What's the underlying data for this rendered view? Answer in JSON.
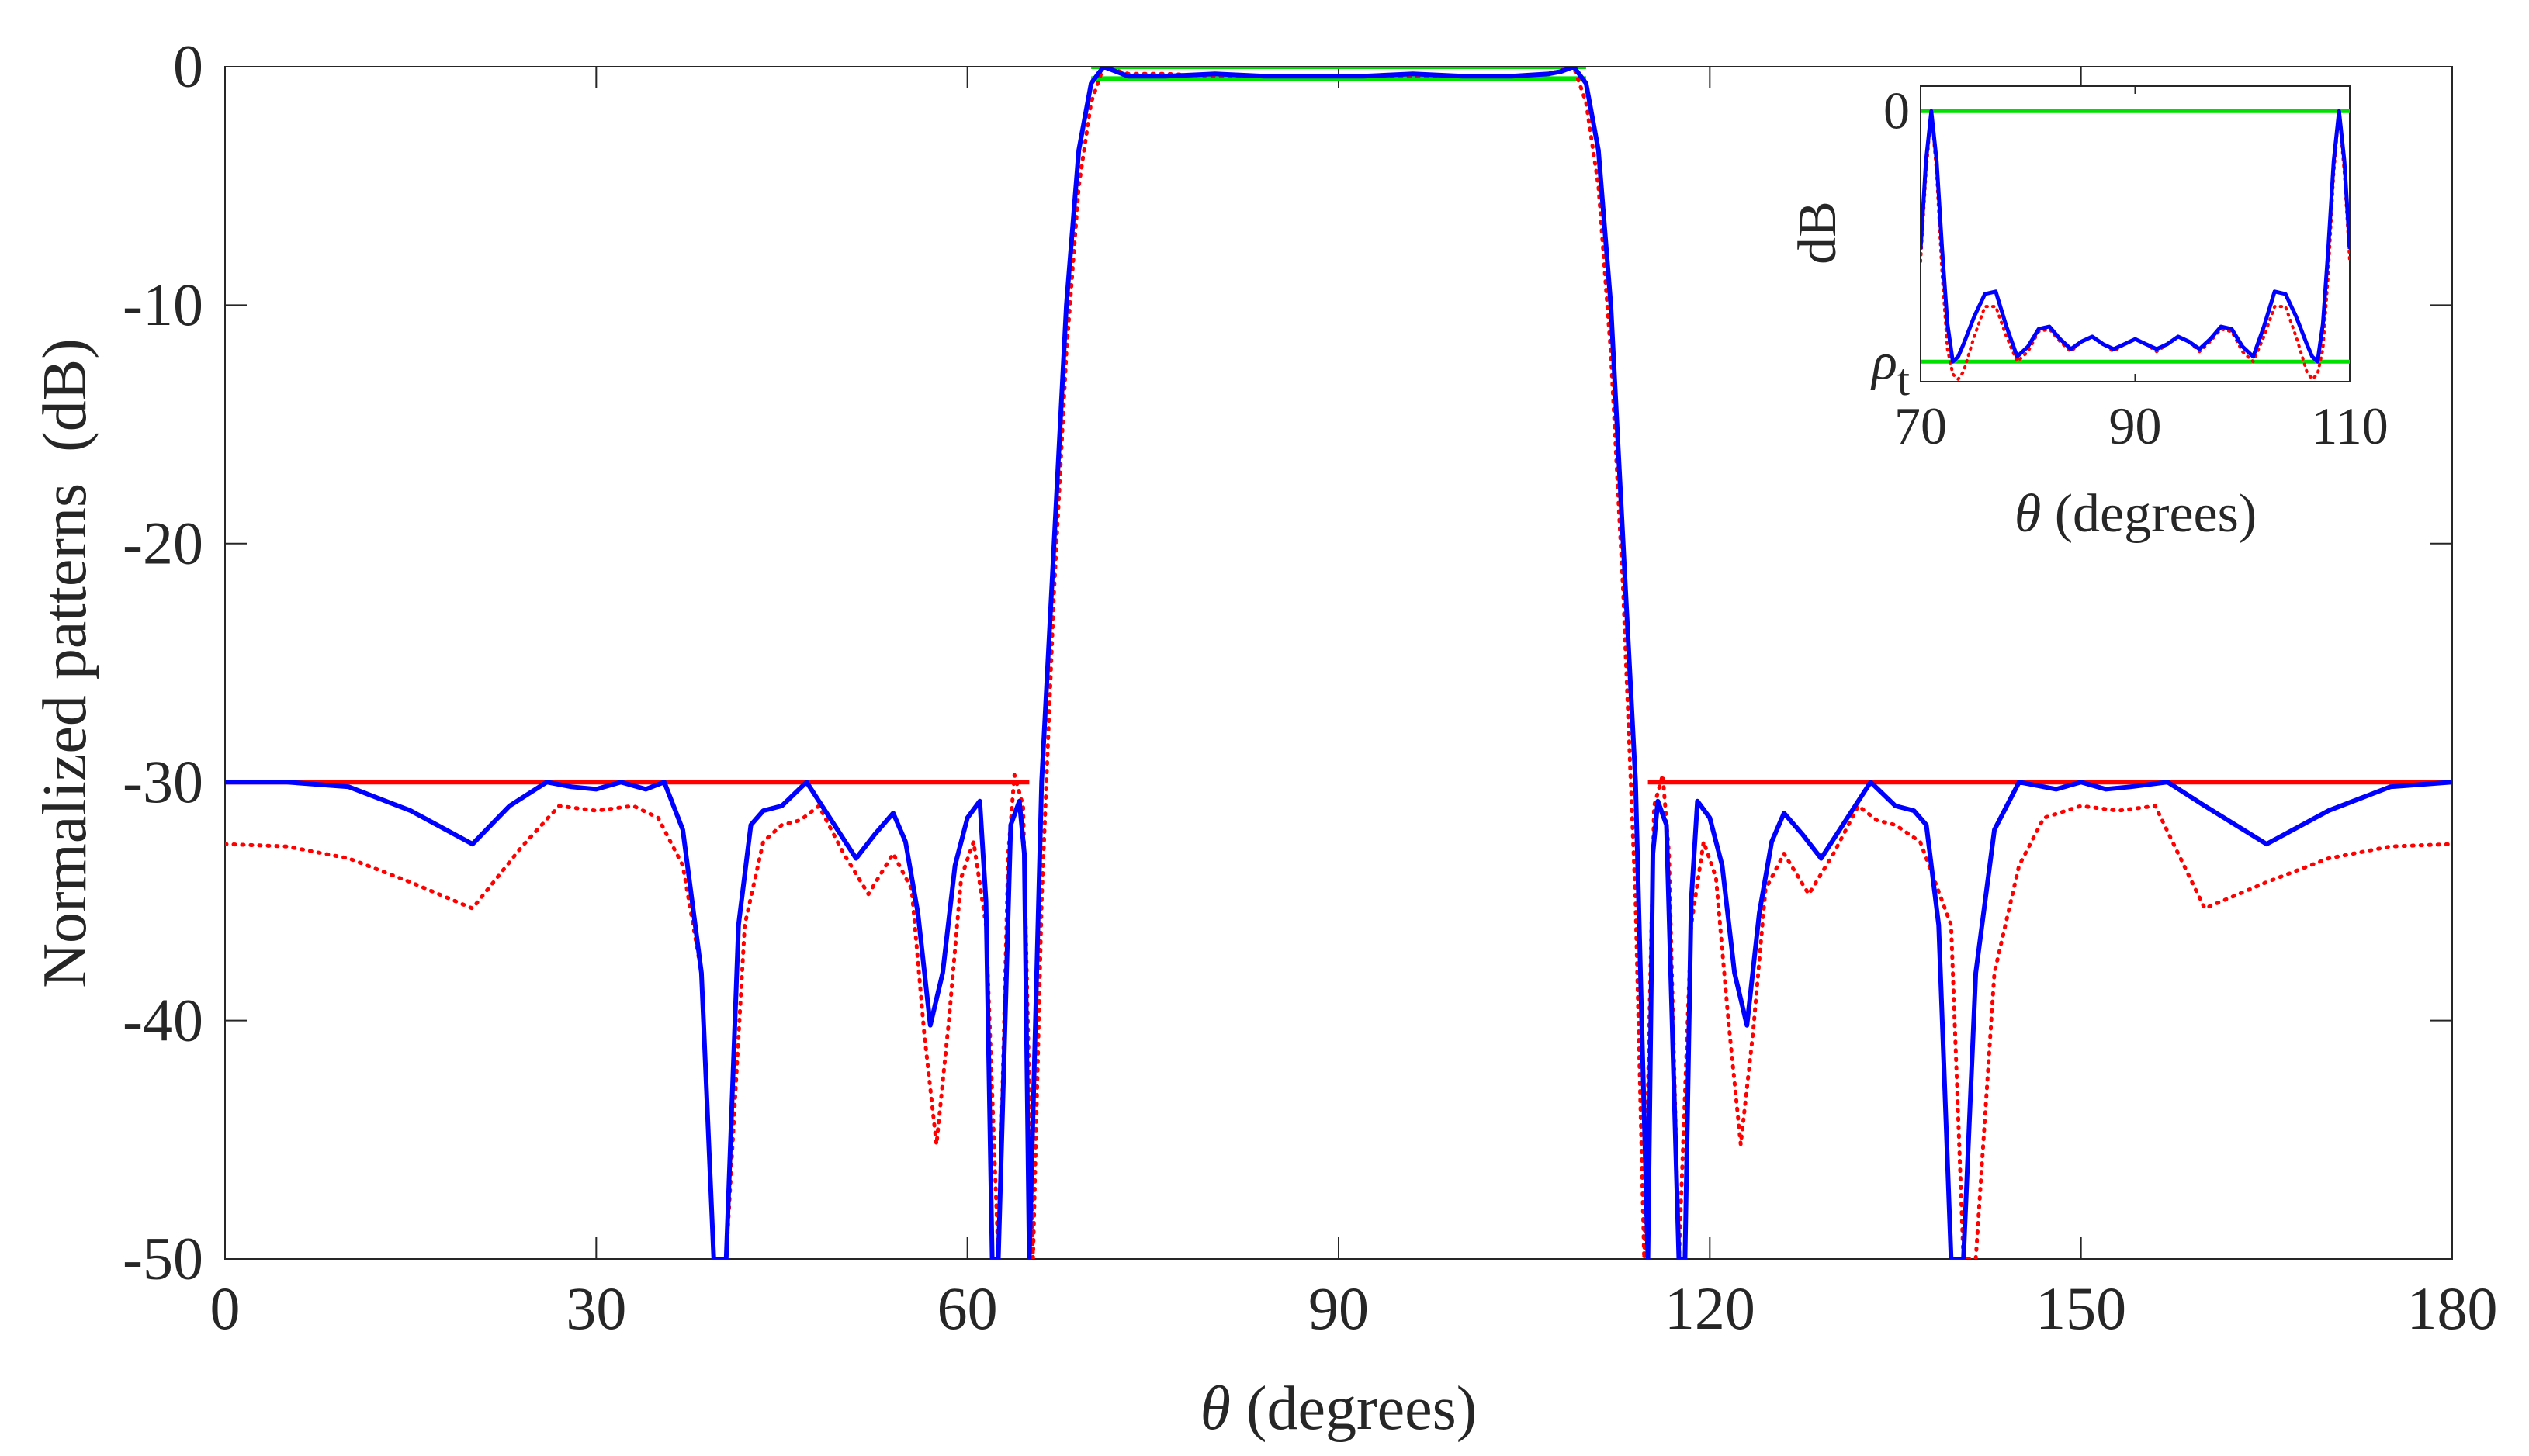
{
  "chart_data": [
    {
      "type": "line",
      "title": "",
      "xlabel_symbol": "θ",
      "xlabel_text": " (degrees)",
      "ylabel": "Normalized patterns  (dB)",
      "xlim": [
        0,
        180
      ],
      "ylim": [
        -50,
        0
      ],
      "xticks": [
        0,
        30,
        60,
        90,
        120,
        150,
        180
      ],
      "yticks": [
        0,
        -10,
        -20,
        -30,
        -40,
        -50
      ],
      "grid": false,
      "series": [
        {
          "name": "mask-sidelobe-bound",
          "color": "#ff0000",
          "style": "solid",
          "segments": [
            {
              "x": [
                0,
                65
              ],
              "y": [
                -30,
                -30
              ]
            },
            {
              "x": [
                115,
                180
              ],
              "y": [
                -30,
                -30
              ]
            }
          ]
        },
        {
          "name": "mask-mainlobe-bound",
          "color": "#00e000",
          "style": "solid",
          "segments": [
            {
              "x": [
                70,
                110
              ],
              "y": [
                0,
                0
              ]
            },
            {
              "x": [
                70,
                110
              ],
              "y": [
                -0.5,
                -0.5
              ]
            }
          ]
        },
        {
          "name": "synthesized-pattern-dotted",
          "color": "#ff0000",
          "style": "dotted",
          "x": [
            0,
            5,
            10,
            15,
            20,
            24,
            27,
            30,
            33,
            35,
            37,
            38.5,
            39.5,
            40.5,
            42,
            43.5,
            45,
            46.5,
            48,
            50,
            52,
            54,
            55.5,
            56.5,
            57.5,
            58.5,
            59.5,
            60.5,
            61.5,
            62.5,
            63.3,
            63.8,
            64.5,
            65.3,
            66,
            67,
            68,
            69,
            70,
            71,
            73,
            76,
            80,
            84,
            88,
            90,
            92,
            96,
            100,
            104,
            107,
            109,
            110,
            111,
            112,
            113,
            114,
            114.7,
            115.5,
            116.2,
            116.7,
            117.5,
            118.5,
            119.5,
            120.5,
            121.5,
            122.5,
            123.5,
            124.5,
            126,
            128,
            130,
            132,
            133.5,
            135,
            137,
            139.5,
            140.5,
            141.5,
            143,
            145,
            147,
            150,
            153,
            156,
            160,
            165,
            170,
            175,
            180
          ],
          "y": [
            -32.6,
            -32.7,
            -33.2,
            -34.2,
            -35.3,
            -32.7,
            -31.0,
            -31.2,
            -31.0,
            -31.5,
            -33.5,
            -38,
            -50,
            -50,
            -36,
            -32.5,
            -31.8,
            -31.6,
            -31.0,
            -33.0,
            -34.7,
            -33.0,
            -34.5,
            -40.5,
            -45.2,
            -40.0,
            -34.0,
            -32.5,
            -36.0,
            -50,
            -33.0,
            -29.7,
            -31.0,
            -50,
            -35,
            -22,
            -12,
            -5,
            -1.5,
            0,
            -0.3,
            -0.3,
            -0.4,
            -0.4,
            -0.4,
            -0.4,
            -0.4,
            -0.4,
            -0.4,
            -0.4,
            -0.3,
            0,
            -1.5,
            -5,
            -12,
            -22,
            -35,
            -50,
            -31.0,
            -29.7,
            -33.0,
            -50,
            -36.0,
            -32.5,
            -34.0,
            -40.0,
            -45.2,
            -40.5,
            -34.5,
            -33.0,
            -34.7,
            -33.0,
            -31.0,
            -31.6,
            -31.8,
            -32.5,
            -36,
            -50,
            -50,
            -38,
            -33.5,
            -31.5,
            -31.0,
            -31.2,
            -31.0,
            -35.3,
            -34.2,
            -33.2,
            -32.7,
            -32.6
          ]
        },
        {
          "name": "synthesized-pattern-solid",
          "color": "#0000ff",
          "style": "solid",
          "x": [
            0,
            5,
            10,
            15,
            20,
            23,
            26,
            28,
            30,
            32,
            34,
            35.5,
            37,
            38.5,
            39.5,
            40.5,
            41.5,
            42.5,
            43.5,
            45,
            47,
            49,
            51,
            52.5,
            54,
            55,
            56,
            57,
            58,
            59,
            60,
            61,
            61.5,
            62,
            62.5,
            63.5,
            64.2,
            64.6,
            65,
            65.5,
            66,
            67,
            68,
            69,
            70,
            71,
            72,
            73,
            76,
            80,
            84,
            88,
            90,
            92,
            96,
            100,
            104,
            107,
            108,
            109,
            110,
            111,
            112,
            113,
            114,
            114.5,
            115,
            115.4,
            115.8,
            116.5,
            117.5,
            118,
            118.5,
            119,
            120,
            121,
            122,
            123,
            124,
            125,
            126,
            127.5,
            129,
            131,
            133,
            135,
            136.5,
            137.5,
            138.5,
            139.5,
            140.5,
            141.5,
            143,
            145,
            148,
            150,
            152,
            154,
            157,
            160,
            165,
            170,
            175,
            180
          ],
          "y": [
            -30.0,
            -30.0,
            -30.2,
            -31.2,
            -32.6,
            -31.0,
            -30.0,
            -30.2,
            -30.3,
            -30.0,
            -30.3,
            -30.0,
            -32.0,
            -38.0,
            -50,
            -50,
            -36,
            -31.8,
            -31.2,
            -31.0,
            -30.0,
            -31.6,
            -33.2,
            -32.2,
            -31.3,
            -32.5,
            -35.5,
            -40.2,
            -38.0,
            -33.5,
            -31.5,
            -30.8,
            -35.0,
            -50,
            -50,
            -31.8,
            -30.8,
            -33.0,
            -50,
            -40,
            -30,
            -20,
            -10,
            -3.5,
            -0.7,
            0,
            -0.2,
            -0.4,
            -0.4,
            -0.3,
            -0.4,
            -0.4,
            -0.4,
            -0.4,
            -0.3,
            -0.4,
            -0.4,
            -0.3,
            -0.2,
            0,
            -0.7,
            -3.5,
            -10,
            -20,
            -30,
            -40,
            -50,
            -33.0,
            -30.8,
            -31.8,
            -50,
            -50,
            -35.0,
            -30.8,
            -31.5,
            -33.5,
            -38.0,
            -40.2,
            -35.5,
            -32.5,
            -31.3,
            -32.2,
            -33.2,
            -31.6,
            -30.0,
            -31.0,
            -31.2,
            -31.8,
            -36,
            -50,
            -50,
            -38.0,
            -32.0,
            -30.0,
            -30.3,
            -30.0,
            -30.3,
            -30.2,
            -30.0,
            -31.0,
            -32.6,
            -31.2,
            -30.2,
            -30.0
          ]
        }
      ]
    },
    {
      "type": "line",
      "role": "inset",
      "xlabel_symbol": "θ",
      "xlabel_text": " (degrees)",
      "ylabel": "dB",
      "xlim": [
        70,
        110
      ],
      "ylim": [
        -1.08,
        0.1
      ],
      "xticks": [
        70,
        90,
        110
      ],
      "ytick_labels": [
        {
          "value": 0,
          "label": "0"
        },
        {
          "value": -1,
          "label": "ρ",
          "subscript": "t"
        }
      ],
      "series": [
        {
          "name": "inset-upper-bound",
          "color": "#00e000",
          "style": "solid",
          "x": [
            70,
            110
          ],
          "y": [
            0,
            0
          ]
        },
        {
          "name": "inset-lower-bound",
          "color": "#00e000",
          "style": "solid",
          "x": [
            70,
            110
          ],
          "y": [
            -1,
            -1
          ]
        },
        {
          "name": "inset-dotted",
          "color": "#ff0000",
          "style": "dotted",
          "x": [
            70,
            70.5,
            71,
            71.5,
            72,
            72.5,
            73,
            73.5,
            74,
            75,
            76,
            77,
            78,
            79,
            80,
            81,
            82,
            83,
            84,
            85,
            86,
            87,
            88,
            89,
            90,
            91,
            92,
            93,
            94,
            95,
            96,
            97,
            98,
            99,
            100,
            101,
            102,
            103,
            104,
            105,
            106,
            106.5,
            107,
            107.5,
            108,
            108.5,
            109,
            109.5,
            110
          ],
          "y": [
            -0.6,
            -0.25,
            0.0,
            -0.25,
            -0.65,
            -0.95,
            -1.05,
            -1.07,
            -1.04,
            -0.9,
            -0.78,
            -0.78,
            -0.9,
            -1.0,
            -0.96,
            -0.88,
            -0.87,
            -0.92,
            -0.96,
            -0.92,
            -0.9,
            -0.93,
            -0.96,
            -0.93,
            -0.91,
            -0.93,
            -0.96,
            -0.93,
            -0.9,
            -0.92,
            -0.96,
            -0.92,
            -0.87,
            -0.88,
            -0.96,
            -1.0,
            -0.9,
            -0.78,
            -0.78,
            -0.9,
            -1.04,
            -1.07,
            -1.05,
            -0.95,
            -0.65,
            -0.25,
            0.0,
            -0.25,
            -0.6
          ]
        },
        {
          "name": "inset-solid",
          "color": "#0000ff",
          "style": "solid",
          "x": [
            70,
            70.5,
            71,
            71.5,
            72,
            72.5,
            73,
            73.5,
            74,
            75,
            76,
            77,
            78,
            79,
            80,
            81,
            82,
            83,
            84,
            85,
            86,
            87,
            88,
            89,
            90,
            91,
            92,
            93,
            94,
            95,
            96,
            97,
            98,
            99,
            100,
            101,
            102,
            103,
            104,
            105,
            106,
            106.5,
            107,
            107.5,
            108,
            108.5,
            109,
            109.5,
            110
          ],
          "y": [
            -0.55,
            -0.2,
            0.0,
            -0.2,
            -0.55,
            -0.85,
            -1.0,
            -0.98,
            -0.93,
            -0.82,
            -0.73,
            -0.72,
            -0.86,
            -0.98,
            -0.94,
            -0.87,
            -0.86,
            -0.91,
            -0.95,
            -0.92,
            -0.9,
            -0.93,
            -0.95,
            -0.93,
            -0.91,
            -0.93,
            -0.95,
            -0.93,
            -0.9,
            -0.92,
            -0.95,
            -0.91,
            -0.86,
            -0.87,
            -0.94,
            -0.98,
            -0.86,
            -0.72,
            -0.73,
            -0.82,
            -0.93,
            -0.98,
            -1.0,
            -0.85,
            -0.55,
            -0.2,
            0.0,
            -0.2,
            -0.55
          ]
        }
      ]
    }
  ]
}
